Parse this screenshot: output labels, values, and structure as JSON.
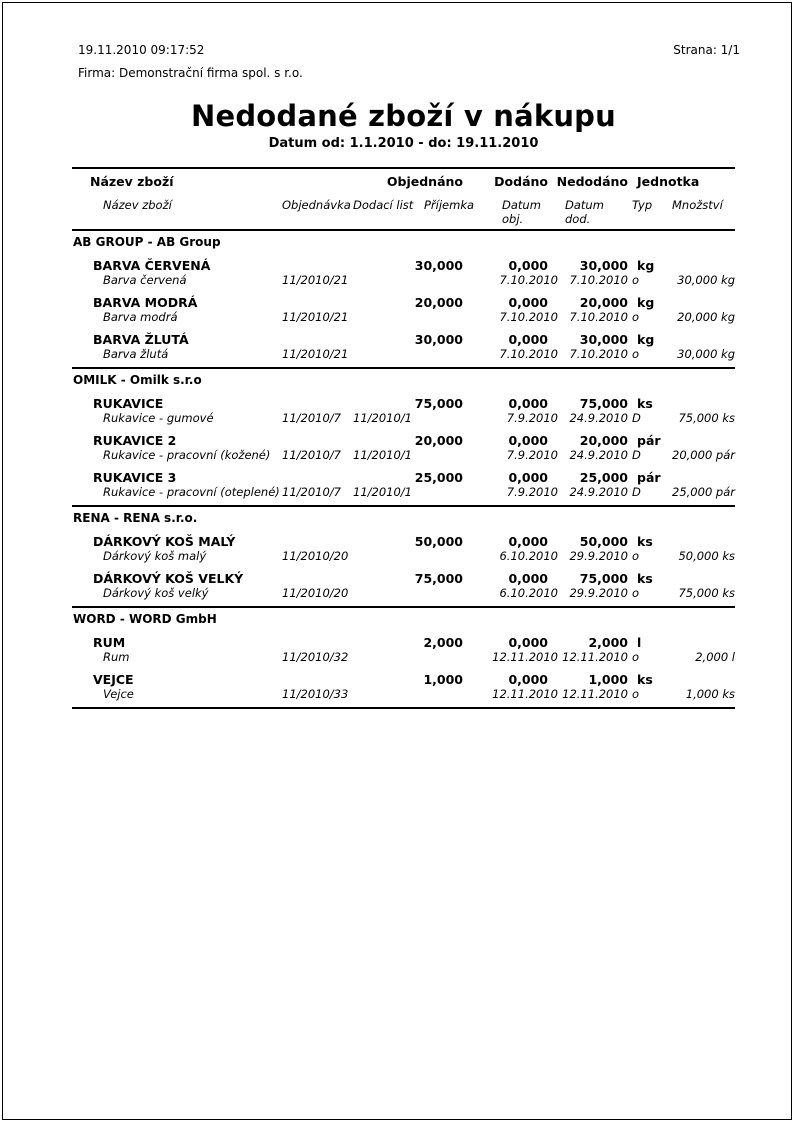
{
  "page": {
    "datetime": "19.11.2010 09:17:52",
    "page_label": "Strana: 1/1",
    "company": "Firma: Demonstrační firma spol. s r.o.",
    "title": "Nedodané zboží v nákupu",
    "subtitle": "Datum od: 1.1.2010 - do: 19.11.2010"
  },
  "table": {
    "header_main": {
      "name": "Název zboží",
      "ordered": "Objednáno",
      "delivered": "Dodáno",
      "undelivered": "Nedodáno",
      "unit": "Jednotka"
    },
    "header_detail": {
      "name": "Název zboží",
      "order": "Objednávka",
      "delivery_note": "Dodací list",
      "receipt": "Příjemka",
      "date_ord": "Datum\nobj.",
      "date_del": "Datum\ndod.",
      "type": "Typ",
      "quantity": "Množství"
    },
    "groups": [
      {
        "title": "AB GROUP - AB Group",
        "items": [
          {
            "name": "BARVA ČERVENÁ",
            "ordered": "30,000",
            "delivered": "0,000",
            "undelivered": "30,000",
            "unit": "kg",
            "detail": {
              "name": "Barva červená",
              "order": "11/2010/21",
              "delivery_note": "",
              "receipt": "",
              "date_ord": "7.10.2010",
              "date_del": "7.10.2010",
              "type": "o",
              "quantity": "30,000 kg"
            }
          },
          {
            "name": "BARVA MODRÁ",
            "ordered": "20,000",
            "delivered": "0,000",
            "undelivered": "20,000",
            "unit": "kg",
            "detail": {
              "name": "Barva modrá",
              "order": "11/2010/21",
              "delivery_note": "",
              "receipt": "",
              "date_ord": "7.10.2010",
              "date_del": "7.10.2010",
              "type": "o",
              "quantity": "20,000 kg"
            }
          },
          {
            "name": "BARVA ŽLUTÁ",
            "ordered": "30,000",
            "delivered": "0,000",
            "undelivered": "30,000",
            "unit": "kg",
            "detail": {
              "name": "Barva žlutá",
              "order": "11/2010/21",
              "delivery_note": "",
              "receipt": "",
              "date_ord": "7.10.2010",
              "date_del": "7.10.2010",
              "type": "o",
              "quantity": "30,000 kg"
            }
          }
        ]
      },
      {
        "title": "OMILK - Omilk s.r.o",
        "items": [
          {
            "name": "RUKAVICE",
            "ordered": "75,000",
            "delivered": "0,000",
            "undelivered": "75,000",
            "unit": "ks",
            "detail": {
              "name": "Rukavice - gumové",
              "order": "11/2010/7",
              "delivery_note": "11/2010/1",
              "receipt": "",
              "date_ord": "7.9.2010",
              "date_del": "24.9.2010",
              "type": "D",
              "quantity": "75,000 ks"
            }
          },
          {
            "name": "RUKAVICE 2",
            "ordered": "20,000",
            "delivered": "0,000",
            "undelivered": "20,000",
            "unit": "pár",
            "detail": {
              "name": "Rukavice - pracovní (kožené)",
              "order": "11/2010/7",
              "delivery_note": "11/2010/1",
              "receipt": "",
              "date_ord": "7.9.2010",
              "date_del": "24.9.2010",
              "type": "D",
              "quantity": "20,000 pár"
            }
          },
          {
            "name": "RUKAVICE 3",
            "ordered": "25,000",
            "delivered": "0,000",
            "undelivered": "25,000",
            "unit": "pár",
            "detail": {
              "name": "Rukavice - pracovní (oteplené)",
              "order": "11/2010/7",
              "delivery_note": "11/2010/1",
              "receipt": "",
              "date_ord": "7.9.2010",
              "date_del": "24.9.2010",
              "type": "D",
              "quantity": "25,000 pár"
            }
          }
        ]
      },
      {
        "title": "RENA - RENA s.r.o.",
        "items": [
          {
            "name": "DÁRKOVÝ KOŠ MALÝ",
            "ordered": "50,000",
            "delivered": "0,000",
            "undelivered": "50,000",
            "unit": "ks",
            "detail": {
              "name": "Dárkový koš malý",
              "order": "11/2010/20",
              "delivery_note": "",
              "receipt": "",
              "date_ord": "6.10.2010",
              "date_del": "29.9.2010",
              "type": "o",
              "quantity": "50,000 ks"
            }
          },
          {
            "name": "DÁRKOVÝ KOŠ VELKÝ",
            "ordered": "75,000",
            "delivered": "0,000",
            "undelivered": "75,000",
            "unit": "ks",
            "detail": {
              "name": "Dárkový koš velký",
              "order": "11/2010/20",
              "delivery_note": "",
              "receipt": "",
              "date_ord": "6.10.2010",
              "date_del": "29.9.2010",
              "type": "o",
              "quantity": "75,000 ks"
            }
          }
        ]
      },
      {
        "title": "WORD - WORD GmbH",
        "items": [
          {
            "name": "RUM",
            "ordered": "2,000",
            "delivered": "0,000",
            "undelivered": "2,000",
            "unit": "l",
            "detail": {
              "name": "Rum",
              "order": "11/2010/32",
              "delivery_note": "",
              "receipt": "",
              "date_ord": "12.11.2010",
              "date_del": "12.11.2010",
              "type": "o",
              "quantity": "2,000 l"
            }
          },
          {
            "name": "VEJCE",
            "ordered": "1,000",
            "delivered": "0,000",
            "undelivered": "1,000",
            "unit": "ks",
            "detail": {
              "name": "Vejce",
              "order": "11/2010/33",
              "delivery_note": "",
              "receipt": "",
              "date_ord": "12.11.2010",
              "date_del": "12.11.2010",
              "type": "o",
              "quantity": "1,000 ks"
            }
          }
        ]
      }
    ]
  }
}
